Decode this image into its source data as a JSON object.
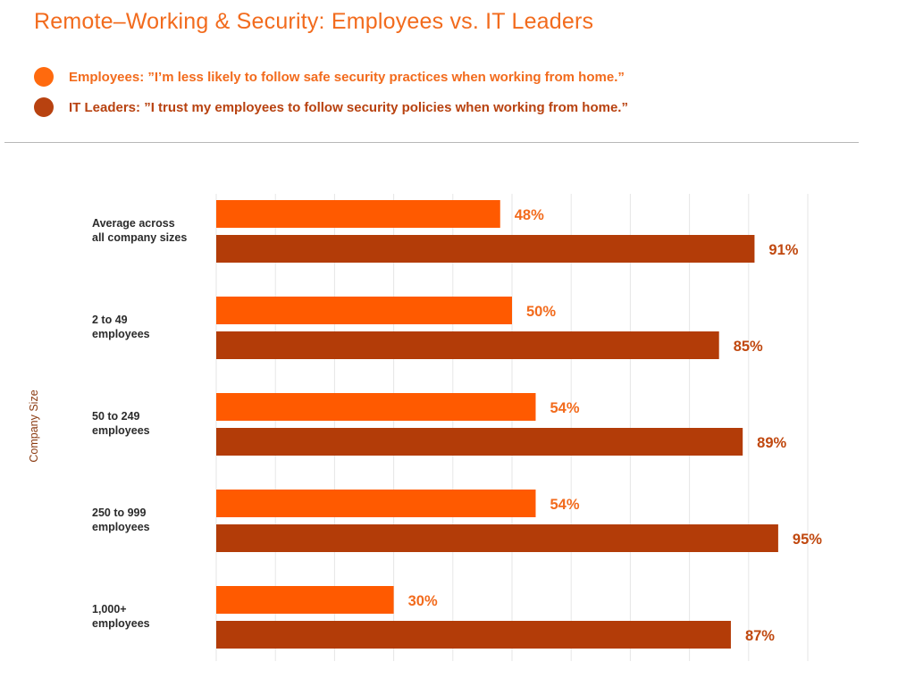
{
  "title": "Remote–Working & Security: Employees vs. IT Leaders",
  "legend": [
    {
      "label": "Employees: ”I’m less likely to follow safe security practices when working from home.”",
      "color": "#ff5a00"
    },
    {
      "label": "IT Leaders: ”I trust my employees to follow security policies when working from home.”",
      "color": "#b33c08"
    }
  ],
  "colors": {
    "title": "#f26b1d",
    "employees": "#ff5a00",
    "employees_text": "#f26b1d",
    "it_leaders": "#b33c08",
    "it_leaders_text": "#c0480f"
  },
  "chart_data": {
    "type": "bar",
    "orientation": "horizontal",
    "title": "Remote–Working & Security: Employees vs. IT Leaders",
    "ylabel": "Company Size",
    "xlabel": "",
    "xlim": [
      0,
      100
    ],
    "grid": true,
    "legend_placement": "top",
    "categories": [
      [
        "Average across",
        "all company sizes"
      ],
      [
        "2 to 49",
        "employees"
      ],
      [
        "50 to 249",
        "employees"
      ],
      [
        "250 to 999",
        "employees"
      ],
      [
        "1,000+",
        "employees"
      ]
    ],
    "series": [
      {
        "name": "Employees",
        "values": [
          48,
          50,
          54,
          54,
          30
        ],
        "labels": [
          "48%",
          "50%",
          "54%",
          "54%",
          "30%"
        ]
      },
      {
        "name": "IT Leaders",
        "values": [
          91,
          85,
          89,
          95,
          87
        ],
        "labels": [
          "91%",
          "85%",
          "89%",
          "95%",
          "87%"
        ]
      }
    ]
  }
}
